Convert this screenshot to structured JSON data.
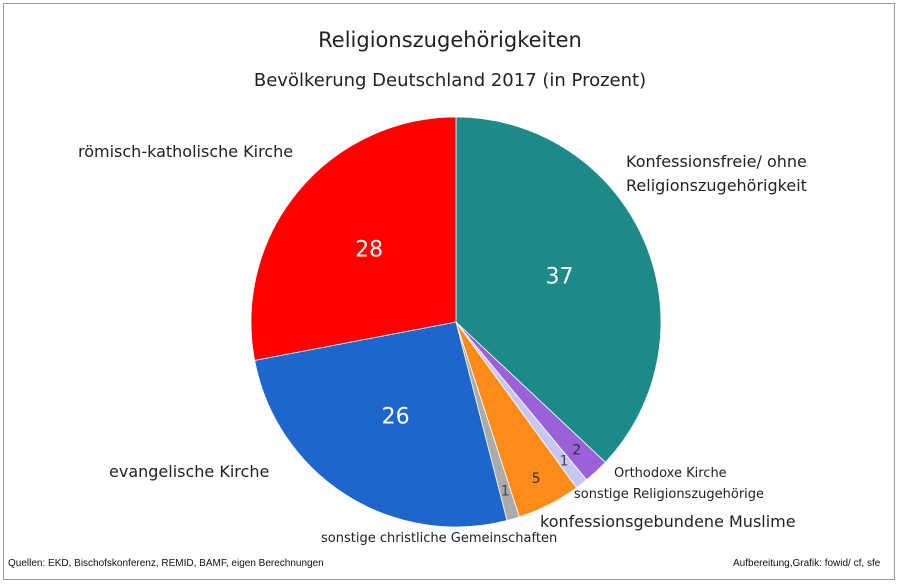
{
  "chart_data": {
    "type": "pie",
    "title": "Religionszugehörigkeiten",
    "subtitle": "Bevölkerung Deutschland 2017 (in Prozent)",
    "slices": [
      {
        "label": "Konfessionsfreie/ ohne Religionszugehörigkeit",
        "value": 37,
        "color": "#1b8a89",
        "value_color": "#ffffff"
      },
      {
        "label": "Orthodoxe Kirche",
        "value": 2,
        "color": "#9a62d6",
        "value_color": "#3a2a50"
      },
      {
        "label": "sonstige Religionszugehörige",
        "value": 1,
        "color": "#c7c7f5",
        "value_color": "#444444"
      },
      {
        "label": "konfessionsgebundene Muslime",
        "value": 5,
        "color": "#ff8c1a",
        "value_color": "#333333"
      },
      {
        "label": "sonstige christliche Gemeinschaften",
        "value": 1,
        "color": "#ababab",
        "value_color": "#444444"
      },
      {
        "label": "evangelische Kirche",
        "value": 26,
        "color": "#1f66cc",
        "value_color": "#ffffff"
      },
      {
        "label": "römisch-katholische Kirche",
        "value": 28,
        "color": "#ff0000",
        "value_color": "#ffffff"
      }
    ]
  },
  "labels": {
    "konfessionsfreie_line1": "Konfessionsfreie/ ohne",
    "konfessionsfreie_line2": "Religionszugehörigkeit",
    "orthodoxe": "Orthodoxe Kirche",
    "sonstige_religion": "sonstige Religionszugehörige",
    "muslime": "konfessionsgebundene Muslime",
    "sonstige_christlich": "sonstige christliche Gemeinschaften",
    "evangelisch": "evangelische Kirche",
    "katholisch": "römisch-katholische Kirche"
  },
  "footer": {
    "sources": "Quellen: EKD, Bischofskonferenz, REMID, BAMF, eigen Berechnungen",
    "credit": "Aufbereitung,Grafik: fowid/ cf, sfe"
  }
}
